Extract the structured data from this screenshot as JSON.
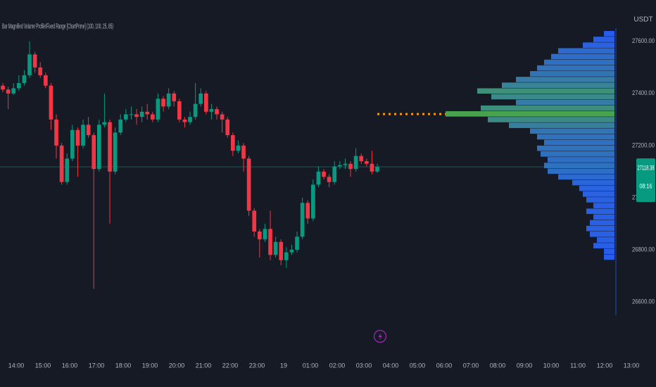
{
  "chart_data": {
    "type": "candlestick",
    "title": "Bar Magnified Volume Profile/Fixed Range [ChartPrime] (100, 100, 25, 85)",
    "unit": "USDT",
    "countdown": "08:16",
    "up_color": "#089981",
    "down_color": "#f23645",
    "xlim": [
      -0.53,
      122.1
    ],
    "xticks": [
      {
        "value": 2.5,
        "label": "14:00"
      },
      {
        "value": 7.5,
        "label": "15:00"
      },
      {
        "value": 12.5,
        "label": "16:00"
      },
      {
        "value": 17.5,
        "label": "17:00"
      },
      {
        "value": 22.5,
        "label": "18:00"
      },
      {
        "value": 27.5,
        "label": "19:00"
      },
      {
        "value": 32.5,
        "label": "20:00"
      },
      {
        "value": 37.5,
        "label": "21:00"
      },
      {
        "value": 42.5,
        "label": "22:00"
      },
      {
        "value": 47.5,
        "label": "23:00"
      },
      {
        "value": 52.5,
        "label": "19"
      },
      {
        "value": 57.5,
        "label": "01:00"
      },
      {
        "value": 62.5,
        "label": "02:00"
      },
      {
        "value": 67.5,
        "label": "03:00"
      },
      {
        "value": 72.5,
        "label": "04:00"
      },
      {
        "value": 77.5,
        "label": "05:00"
      },
      {
        "value": 82.5,
        "label": "06:00"
      },
      {
        "value": 87.5,
        "label": "07:00"
      },
      {
        "value": 92.5,
        "label": "08:00"
      },
      {
        "value": 97.5,
        "label": "09:00"
      },
      {
        "value": 102.5,
        "label": "10:00"
      },
      {
        "value": 107.5,
        "label": "11:00"
      },
      {
        "value": 112.5,
        "label": "12:00"
      },
      {
        "value": 117.5,
        "label": "13:00"
      }
    ],
    "ylim": [
      26408,
      27759
    ],
    "yticks": [
      {
        "value": 26600,
        "label": "26600.00"
      },
      {
        "value": 26800,
        "label": "26800.00"
      },
      {
        "value": 27000,
        "label": "27000.00"
      },
      {
        "value": 27200,
        "label": "27200.00"
      },
      {
        "value": 27400,
        "label": "27400.00"
      },
      {
        "value": 27600,
        "label": "27600.00"
      }
    ],
    "open": [
      27430,
      27415,
      27400,
      27420,
      27440,
      27470,
      27550,
      27500,
      27470,
      27430,
      27300,
      27200,
      27060,
      27150,
      27260,
      27200,
      27280,
      27240,
      27110,
      27280,
      27290,
      27100,
      27250,
      27300,
      27320,
      27320,
      27310,
      27330,
      27320,
      27300,
      27380,
      27350,
      27400,
      27370,
      27300,
      27290,
      27310,
      27360,
      27400,
      27330,
      27340,
      27320,
      27300,
      27240,
      27180,
      27200,
      27150,
      26950,
      26870,
      26840,
      26880,
      26780,
      26830,
      26760,
      26790,
      26800,
      26850,
      26980,
      26920,
      27050,
      27100,
      27080,
      27060,
      27120,
      27125,
      27130,
      27110,
      27160,
      27140,
      27130,
      27100
    ],
    "high": [
      27440,
      27425,
      27440,
      27470,
      27490,
      27600,
      27560,
      27520,
      27480,
      27440,
      27320,
      27210,
      27170,
      27280,
      27270,
      27300,
      27310,
      27250,
      27300,
      27400,
      27300,
      27270,
      27320,
      27340,
      27350,
      27340,
      27350,
      27360,
      27330,
      27400,
      27390,
      27420,
      27410,
      27380,
      27310,
      27330,
      27440,
      27420,
      27410,
      27360,
      27350,
      27330,
      27310,
      27250,
      27220,
      27210,
      27160,
      26960,
      26880,
      26900,
      26950,
      26850,
      26840,
      26810,
      26820,
      26870,
      27000,
      26990,
      27070,
      27120,
      27110,
      27090,
      27140,
      27140,
      27150,
      27140,
      27190,
      27170,
      27150,
      27180,
      27130
    ],
    "low": [
      27405,
      27340,
      27395,
      27410,
      27430,
      27460,
      27480,
      27460,
      27420,
      27260,
      27150,
      27050,
      27050,
      27140,
      27080,
      27190,
      27230,
      26650,
      27100,
      27270,
      26900,
      27090,
      27240,
      27290,
      27300,
      27280,
      27290,
      27300,
      27290,
      27290,
      27330,
      27340,
      27350,
      27290,
      27270,
      27280,
      27300,
      27350,
      27320,
      27300,
      27300,
      27250,
      27230,
      27160,
      27170,
      27100,
      26930,
      26850,
      26770,
      26830,
      26760,
      26770,
      26740,
      26730,
      26780,
      26790,
      26840,
      26900,
      26910,
      27040,
      27070,
      27040,
      27050,
      27110,
      27110,
      27080,
      27100,
      27130,
      27120,
      27090,
      27095
    ],
    "close": [
      27415,
      27400,
      27420,
      27440,
      27470,
      27550,
      27500,
      27470,
      27430,
      27300,
      27200,
      27060,
      27150,
      27260,
      27200,
      27280,
      27240,
      27110,
      27280,
      27290,
      27100,
      27250,
      27300,
      27320,
      27320,
      27310,
      27330,
      27320,
      27300,
      27380,
      27350,
      27400,
      27370,
      27300,
      27290,
      27310,
      27360,
      27400,
      27330,
      27340,
      27320,
      27300,
      27240,
      27180,
      27200,
      27150,
      26950,
      26870,
      26840,
      26880,
      26780,
      26830,
      26760,
      26790,
      26800,
      26850,
      26980,
      26920,
      27050,
      27100,
      27080,
      27060,
      27120,
      27125,
      27130,
      27110,
      27160,
      27140,
      27130,
      27100,
      27118.38
    ],
    "profile": {
      "bins": [
        26760,
        26782,
        26804,
        26826,
        26848,
        26870,
        26892,
        26914,
        26936,
        26958,
        26980,
        27002,
        27024,
        27046,
        27068,
        27090,
        27112,
        27134,
        27156,
        27178,
        27200,
        27222,
        27244,
        27266,
        27288,
        27310,
        27332,
        27354,
        27376,
        27398,
        27420,
        27442,
        27464,
        27486,
        27508,
        27530,
        27552,
        27574,
        27596,
        27618,
        27640
      ],
      "volumes": [
        15,
        15,
        30,
        25,
        35,
        40,
        35,
        30,
        40,
        30,
        40,
        45,
        50,
        60,
        80,
        95,
        100,
        95,
        105,
        110,
        100,
        110,
        120,
        150,
        180,
        240,
        190,
        140,
        175,
        195,
        160,
        140,
        120,
        110,
        100,
        90,
        80,
        45,
        30,
        15
      ],
      "low_color": "#2962ff",
      "high_color": "#4caf50",
      "poc_color": "#ff9800"
    }
  }
}
